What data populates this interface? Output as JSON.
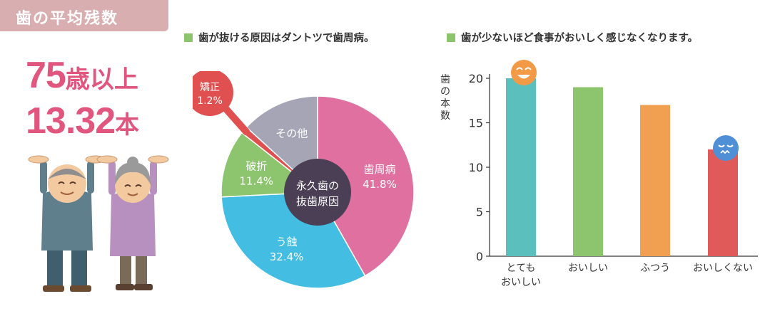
{
  "header": {
    "title": "歯の平均残数"
  },
  "summary": {
    "age_number": "75",
    "age_suffix": "歳以上",
    "count_number": "13.32",
    "count_unit": "本"
  },
  "pie_heading": "歯が抜ける原因はダントツで歯周病。",
  "bar_heading": "歯が少ないほど食事がおいしく感じなくなります。",
  "chart_data": [
    {
      "type": "pie",
      "title": "歯が抜ける原因はダントツで歯周病。",
      "center_label": [
        "永久歯の",
        "抜歯原因"
      ],
      "slices": [
        {
          "name": "歯周病",
          "value": 41.8,
          "value_label": "41.8%",
          "color": "#e0709f"
        },
        {
          "name": "う蝕",
          "value": 32.4,
          "value_label": "32.4%",
          "color": "#43bde2"
        },
        {
          "name": "破折",
          "value": 11.4,
          "value_label": "11.4%",
          "color": "#8cc56e"
        },
        {
          "name": "矯正",
          "value": 1.2,
          "value_label": "1.2%",
          "color": "#e05050"
        },
        {
          "name": "その他",
          "value": 13.2,
          "value_label": "",
          "color": "#a5a5b5"
        }
      ]
    },
    {
      "type": "bar",
      "title": "歯が少ないほど食事がおいしく感じなくなります。",
      "ylabel": "歯の本数",
      "ylim": [
        0,
        20
      ],
      "yticks": [
        0,
        5,
        10,
        15,
        20
      ],
      "categories": [
        [
          "とても",
          "おいしい"
        ],
        [
          "おいしい"
        ],
        [
          "ふつう"
        ],
        [
          "おいしくない"
        ]
      ],
      "values": [
        20,
        19,
        17,
        12
      ],
      "colors": [
        "#5bbfbd",
        "#8cc56e",
        "#f0a050",
        "#e05a5a"
      ]
    }
  ]
}
